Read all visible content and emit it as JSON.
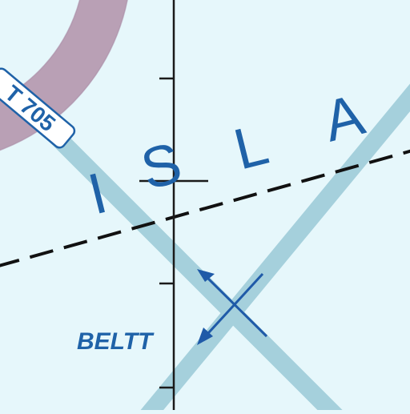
{
  "chart": {
    "area_label_letters": [
      "I",
      "S",
      "L",
      "A"
    ],
    "route_label": "T 705",
    "fix_label": "BELTT"
  },
  "colors": {
    "background": "#e6f7fb",
    "airway": "#a5d0dc",
    "ring_fill": "#b9a0b5",
    "ring_edge": "#a98aa5",
    "text_blue": "#1f62a8",
    "fix_arrow": "#1f5aa8",
    "meridian": "#1a1a1a",
    "dashed_boundary": "#111111",
    "route_shield": "#ffffff"
  },
  "icons": {
    "fix_marker": "x-cross-arrows-icon",
    "meridian": "tick-line-icon"
  }
}
